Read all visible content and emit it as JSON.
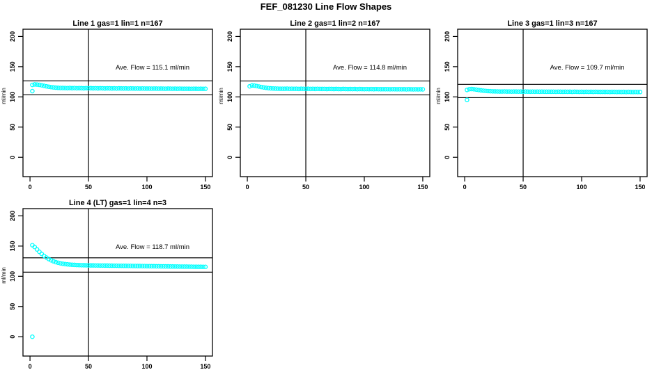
{
  "title": "FEF_081230  Line Flow Shapes",
  "colors": {
    "points": "#00ffff",
    "axis": "#000000",
    "background": "#ffffff"
  },
  "chart_data": [
    {
      "type": "scatter",
      "title": "Line 1 gas=1 lin=1 n=167",
      "annotation": "Ave. Flow =  115.1  ml/min",
      "ave_flow": 115.1,
      "ylabel": "ml/min",
      "x_ticks": [
        0,
        50,
        100,
        150
      ],
      "y_ticks": [
        0,
        50,
        100,
        150,
        200
      ],
      "xlim": [
        0,
        150
      ],
      "ylim": [
        0,
        200
      ],
      "vline_x": 50,
      "ref_high": 126.6,
      "ref_low": 103.6,
      "x_start": 2,
      "x_step": 2,
      "y": [
        119.8,
        120.6,
        120.4,
        119.9,
        119.2,
        118.3,
        117.5,
        116.8,
        116.2,
        115.7,
        115.3,
        115.0,
        114.8,
        114.7,
        114.6,
        114.5,
        114.7,
        114.4,
        114.6,
        114.3,
        114.5,
        114.4,
        114.2,
        114.5,
        114.3,
        114.4,
        114.2,
        114.3,
        114.1,
        114.3,
        114.2,
        114.0,
        114.2,
        114.1,
        114.0,
        114.1,
        113.9,
        114.1,
        114.0,
        113.9,
        114.0,
        113.8,
        114.0,
        113.9,
        113.8,
        113.9,
        113.7,
        113.9,
        113.8,
        113.7,
        113.8,
        113.6,
        113.8,
        113.7,
        113.6,
        113.7,
        113.6,
        113.5,
        113.7,
        113.6,
        113.5,
        113.6,
        113.4,
        113.6,
        113.5,
        113.4,
        113.5,
        113.4,
        113.3,
        113.5,
        113.4,
        113.3,
        113.4,
        113.3,
        113.4
      ],
      "outliers": [
        [
          2,
          109.5
        ]
      ]
    },
    {
      "type": "scatter",
      "title": "Line 2 gas=1 lin=2 n=167",
      "annotation": "Ave. Flow =  114.8  ml/min",
      "ave_flow": 114.8,
      "ylabel": "ml/min",
      "x_ticks": [
        0,
        50,
        100,
        150
      ],
      "y_ticks": [
        0,
        50,
        100,
        150,
        200
      ],
      "xlim": [
        0,
        150
      ],
      "ylim": [
        0,
        200
      ],
      "vline_x": 50,
      "ref_high": 126.3,
      "ref_low": 103.3,
      "x_start": 2,
      "x_step": 2,
      "y": [
        117.5,
        118.9,
        118.6,
        117.9,
        117.1,
        116.3,
        115.6,
        115.0,
        114.5,
        114.1,
        113.9,
        113.7,
        113.6,
        113.5,
        113.5,
        113.4,
        113.6,
        113.3,
        113.5,
        113.3,
        113.4,
        113.2,
        113.4,
        113.3,
        113.2,
        113.4,
        113.2,
        113.3,
        113.1,
        113.3,
        113.2,
        113.1,
        113.2,
        113.0,
        113.2,
        113.1,
        113.0,
        113.1,
        113.0,
        112.9,
        113.1,
        113.0,
        112.9,
        113.0,
        112.9,
        113.0,
        112.8,
        113.0,
        112.9,
        112.8,
        112.9,
        112.8,
        112.9,
        112.7,
        112.9,
        112.8,
        112.7,
        112.8,
        112.7,
        112.8,
        112.6,
        112.8,
        112.7,
        112.6,
        112.7,
        112.6,
        112.7,
        112.5,
        112.7,
        112.6,
        112.5,
        112.6,
        112.5,
        112.6,
        112.5
      ],
      "outliers": []
    },
    {
      "type": "scatter",
      "title": "Line 3 gas=1 lin=3 n=167",
      "annotation": "Ave. Flow =  109.7  ml/min",
      "ave_flow": 109.7,
      "ylabel": "ml/min",
      "x_ticks": [
        0,
        50,
        100,
        150
      ],
      "y_ticks": [
        0,
        50,
        100,
        150,
        200
      ],
      "xlim": [
        0,
        150
      ],
      "ylim": [
        0,
        200
      ],
      "vline_x": 50,
      "ref_high": 120.7,
      "ref_low": 98.7,
      "x_start": 2,
      "x_step": 2,
      "y": [
        111.5,
        112.8,
        113.0,
        112.6,
        112.0,
        111.4,
        110.8,
        110.3,
        109.9,
        109.6,
        109.4,
        109.2,
        109.1,
        109.0,
        108.9,
        108.9,
        109.0,
        108.8,
        108.9,
        108.7,
        108.9,
        108.8,
        108.7,
        108.8,
        108.6,
        108.8,
        108.7,
        108.6,
        108.7,
        108.6,
        108.7,
        108.5,
        108.7,
        108.6,
        108.5,
        108.6,
        108.5,
        108.6,
        108.4,
        108.6,
        108.5,
        108.4,
        108.5,
        108.4,
        108.5,
        108.3,
        108.5,
        108.4,
        108.3,
        108.4,
        108.3,
        108.4,
        108.3,
        108.4,
        108.2,
        108.4,
        108.3,
        108.2,
        108.3,
        108.2,
        108.3,
        108.1,
        108.3,
        108.2,
        108.1,
        108.2,
        108.1,
        108.2,
        108.0,
        108.2,
        108.1,
        108.0,
        108.1,
        108.0,
        108.1
      ],
      "outliers": [
        [
          2,
          95
        ]
      ]
    },
    {
      "type": "scatter",
      "title": "Line 4 (LT) gas=1 lin=4 n=3",
      "annotation": "Ave. Flow =  118.7  ml/min",
      "ave_flow": 118.7,
      "ylabel": "ml/min",
      "x_ticks": [
        0,
        50,
        100,
        150
      ],
      "y_ticks": [
        0,
        50,
        100,
        150,
        200
      ],
      "xlim": [
        0,
        150
      ],
      "ylim": [
        0,
        200
      ],
      "vline_x": 50,
      "ref_high": 130.6,
      "ref_low": 106.8,
      "x_start": 2,
      "x_step": 2,
      "y": [
        151.5,
        148.5,
        144.5,
        140.5,
        137.0,
        133.8,
        131.0,
        128.6,
        126.6,
        124.9,
        123.5,
        122.4,
        121.5,
        120.8,
        120.2,
        119.8,
        119.4,
        119.1,
        118.9,
        118.7,
        118.5,
        118.4,
        118.3,
        118.2,
        118.1,
        118.0,
        118.0,
        117.9,
        117.9,
        117.8,
        117.8,
        117.7,
        117.7,
        117.6,
        117.6,
        117.5,
        117.5,
        117.4,
        117.4,
        117.3,
        117.3,
        117.2,
        117.2,
        117.1,
        117.1,
        117.0,
        117.0,
        116.9,
        116.9,
        116.8,
        116.8,
        116.7,
        116.7,
        116.6,
        116.6,
        116.5,
        116.5,
        116.4,
        116.4,
        116.3,
        116.3,
        116.2,
        116.2,
        116.1,
        116.1,
        116.0,
        116.0,
        115.9,
        115.9,
        115.8,
        115.8,
        115.7,
        115.7,
        115.6,
        115.6
      ],
      "outliers": [
        [
          2,
          0
        ]
      ]
    }
  ]
}
